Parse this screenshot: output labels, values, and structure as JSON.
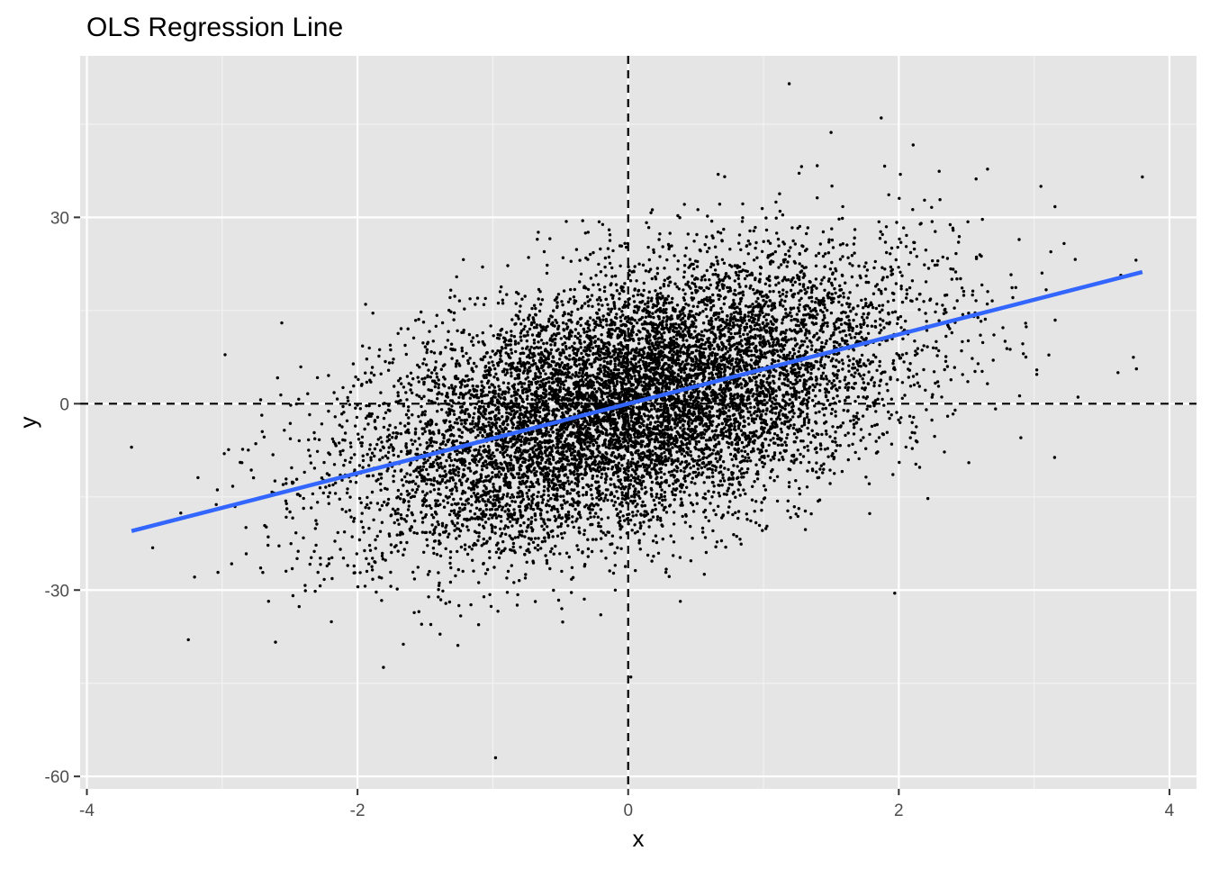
{
  "chart_data": {
    "type": "scatter",
    "title": "OLS Regression Line",
    "xlabel": "x",
    "ylabel": "y",
    "xlim": [
      -4.05,
      4.2
    ],
    "ylim": [
      -62,
      56
    ],
    "x_ticks": [
      -4,
      -2,
      0,
      2,
      4
    ],
    "y_ticks": [
      -60,
      -30,
      0,
      30
    ],
    "x_tick_labels": [
      "-4",
      "-2",
      "0",
      "2",
      "4"
    ],
    "y_tick_labels": [
      "-60",
      "-30",
      "0",
      "30"
    ],
    "x_minor_ticks": [
      -3,
      -1,
      1,
      3
    ],
    "y_minor_ticks": [
      -45,
      -15,
      15,
      45
    ],
    "grid": true,
    "panel_background": "#e5e5e5",
    "point_color": "#000000",
    "reference_lines": [
      {
        "axis": "x",
        "value": 0,
        "style": "dashed",
        "color": "#000000"
      },
      {
        "axis": "y",
        "value": 0,
        "style": "dashed",
        "color": "#000000"
      }
    ],
    "regression_line": {
      "color": "#3366ff",
      "x": [
        -3.67,
        3.8
      ],
      "y": [
        -20.5,
        21.2
      ],
      "intercept": 0.0,
      "slope": 5.6
    },
    "points_model": {
      "n": 10000,
      "x_mean": 0,
      "x_sd": 1,
      "y_intercept": 0,
      "y_slope": 5.6,
      "y_noise_sd": 10
    },
    "notable_points": [
      {
        "x": -3.67,
        "y": -7
      },
      {
        "x": -3.25,
        "y": -38
      },
      {
        "x": -0.98,
        "y": -57
      },
      {
        "x": 1.19,
        "y": 51.5
      },
      {
        "x": 1.87,
        "y": 46
      },
      {
        "x": 3.8,
        "y": 36.5
      },
      {
        "x": 3.62,
        "y": 5
      },
      {
        "x": 1.97,
        "y": -30.5
      },
      {
        "x": 0.02,
        "y": -44
      },
      {
        "x": -1.94,
        "y": 16
      },
      {
        "x": -2.56,
        "y": 13
      },
      {
        "x": 3.05,
        "y": 35
      }
    ]
  }
}
